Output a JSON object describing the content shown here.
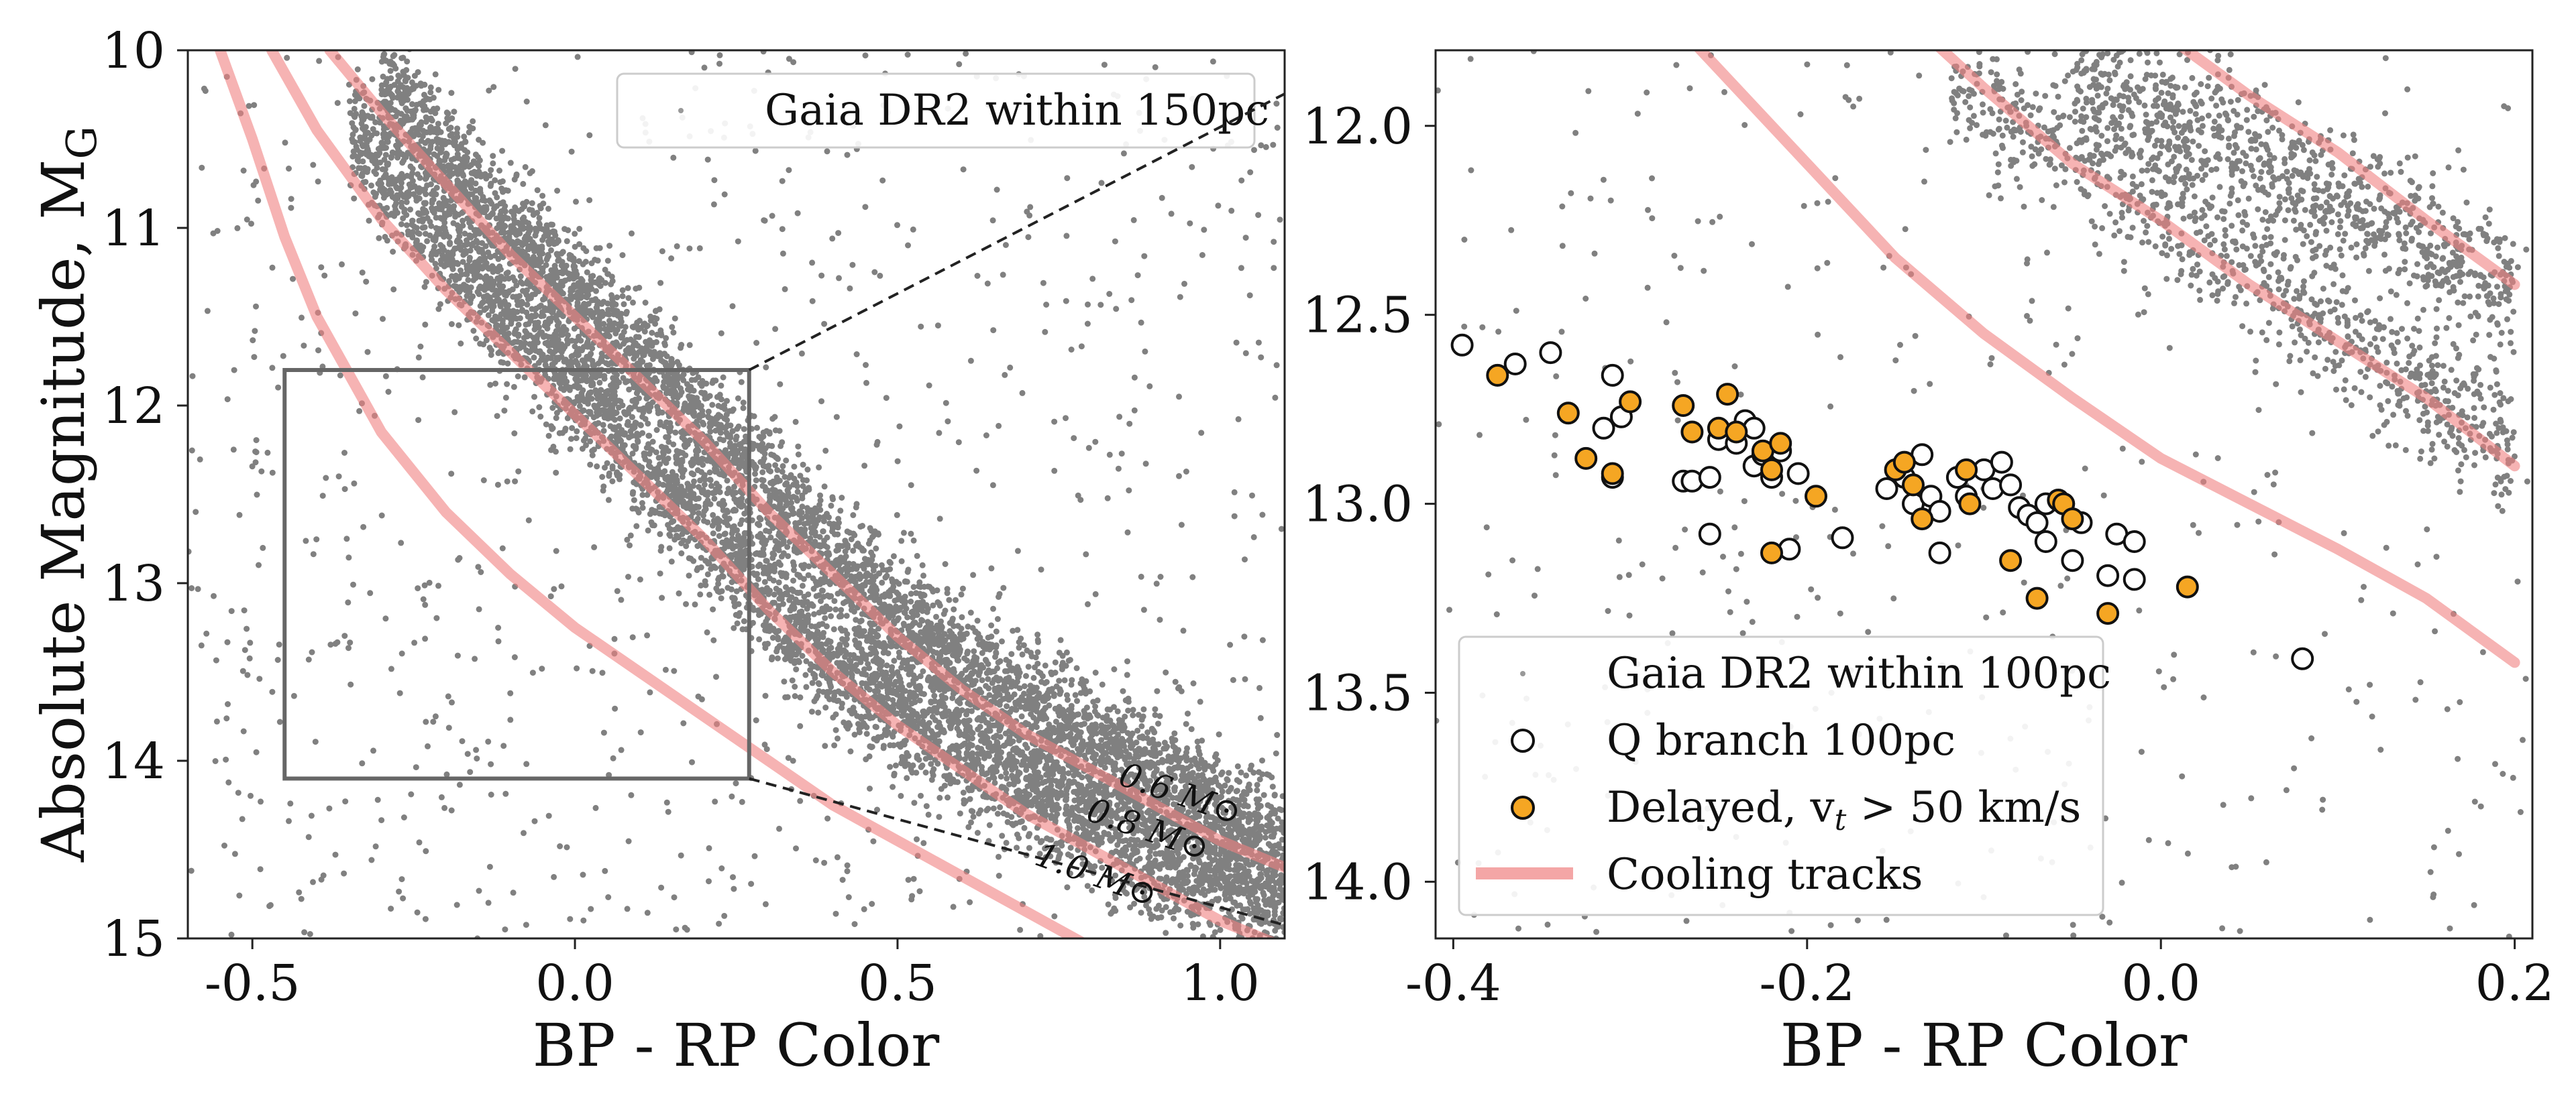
{
  "chart_data": [
    {
      "type": "scatter",
      "panel": "left",
      "xlabel": "BP - RP Color",
      "ylabel": "Absolute Magnitude, M",
      "ylabel_subscript": "G",
      "xlim": [
        -0.6,
        1.1
      ],
      "ylim": [
        15,
        10
      ],
      "y_inverted": true,
      "xticks": [
        "-0.5",
        "0.0",
        "0.5",
        "1.0"
      ],
      "xtick_values": [
        -0.5,
        0.0,
        0.5,
        1.0
      ],
      "yticks": [
        "10",
        "11",
        "12",
        "13",
        "14",
        "15"
      ],
      "ytick_values": [
        10,
        11,
        12,
        13,
        14,
        15
      ],
      "grid": false,
      "legend_position": "top-right",
      "legend": [
        {
          "label": "Gaia DR2 within 150pc",
          "marker": "small-gray-dot"
        }
      ],
      "series": [
        {
          "name": "Gaia DR2 within 150pc",
          "kind": "point-cloud",
          "color": "#808080",
          "ridges": [
            {
              "x": [
                -0.35,
                -0.2,
                0.0,
                0.2,
                0.4,
                0.6,
                0.8,
                1.1
              ],
              "y": [
                10.4,
                11.1,
                11.9,
                12.7,
                13.45,
                13.95,
                14.35,
                14.85
              ]
            },
            {
              "x": [
                -0.3,
                -0.15,
                0.05,
                0.25,
                0.45,
                0.65,
                0.85,
                1.1
              ],
              "y": [
                10.2,
                10.85,
                11.55,
                12.3,
                13.05,
                13.6,
                14.0,
                14.5
              ]
            }
          ],
          "spread_mag": 0.35,
          "scattered_background": true
        },
        {
          "name": "0.6 M⊙",
          "kind": "cooling-track",
          "color": "#f08080",
          "x": [
            -0.38,
            -0.3,
            -0.2,
            -0.1,
            0.0,
            0.1,
            0.2,
            0.3,
            0.4,
            0.5,
            0.6,
            0.7,
            0.8,
            0.9,
            1.0,
            1.1
          ],
          "y": [
            10.0,
            10.35,
            10.75,
            11.15,
            11.5,
            11.85,
            12.2,
            12.6,
            12.95,
            13.3,
            13.6,
            13.85,
            14.05,
            14.25,
            14.45,
            14.6
          ]
        },
        {
          "name": "0.8 M⊙",
          "kind": "cooling-track",
          "color": "#f08080",
          "x": [
            -0.47,
            -0.4,
            -0.3,
            -0.2,
            -0.1,
            0.0,
            0.1,
            0.2,
            0.3,
            0.4,
            0.5,
            0.6,
            0.7,
            0.8,
            0.9,
            1.0,
            1.1
          ],
          "y": [
            10.0,
            10.45,
            10.95,
            11.35,
            11.7,
            12.05,
            12.4,
            12.75,
            13.15,
            13.5,
            13.8,
            14.05,
            14.3,
            14.5,
            14.7,
            14.9,
            15.05
          ]
        },
        {
          "name": "1.0 M⊙",
          "kind": "cooling-track",
          "color": "#f08080",
          "x": [
            -0.55,
            -0.5,
            -0.45,
            -0.4,
            -0.3,
            -0.2,
            -0.1,
            0.0,
            0.1,
            0.2,
            0.3,
            0.4,
            0.5,
            0.6,
            0.7,
            0.8
          ],
          "y": [
            10.0,
            10.5,
            11.05,
            11.5,
            12.15,
            12.6,
            12.95,
            13.25,
            13.5,
            13.75,
            14.0,
            14.25,
            14.45,
            14.65,
            14.85,
            15.05
          ]
        }
      ],
      "track_labels": [
        "0.6 M⊙",
        "0.8 M⊙",
        "1.0 M⊙"
      ],
      "zoom_box": {
        "x": [
          -0.45,
          0.27
        ],
        "y": [
          11.8,
          14.1
        ]
      }
    },
    {
      "type": "scatter",
      "panel": "right",
      "xlabel": "BP - RP Color",
      "ylabel": "",
      "xlim": [
        -0.41,
        0.21
      ],
      "ylim": [
        14.15,
        11.8
      ],
      "y_inverted": true,
      "xticks": [
        "-0.4",
        "-0.2",
        "0.0",
        "0.2"
      ],
      "xtick_values": [
        -0.4,
        -0.2,
        0.0,
        0.2
      ],
      "yticks": [
        "12.0",
        "12.5",
        "13.0",
        "13.5",
        "14.0"
      ],
      "ytick_values": [
        12.0,
        12.5,
        13.0,
        13.5,
        14.0
      ],
      "grid": false,
      "legend_position": "lower-left",
      "legend": [
        {
          "label": "Gaia DR2 within 100pc",
          "marker": "small-gray-dot"
        },
        {
          "label": "Q branch 100pc",
          "marker": "open-circle"
        },
        {
          "label": "Delayed, v",
          "label_subscript": "t",
          "label_suffix": " > 50 km/s",
          "marker": "orange-circle"
        },
        {
          "label": "Cooling tracks",
          "marker": "pink-line"
        }
      ],
      "series": [
        {
          "name": "Gaia DR2 within 100pc",
          "kind": "point-cloud",
          "color": "#808080",
          "ridges": [
            {
              "x": [
                -0.05,
                0.0,
                0.05,
                0.1,
                0.15,
                0.2
              ],
              "y": [
                11.85,
                11.95,
                12.05,
                12.2,
                12.3,
                12.45
              ]
            },
            {
              "x": [
                -0.12,
                -0.05,
                0.0,
                0.05,
                0.1,
                0.15,
                0.2
              ],
              "y": [
                11.9,
                12.05,
                12.2,
                12.35,
                12.55,
                12.7,
                12.85
              ]
            }
          ],
          "spread_mag": 0.18,
          "scattered_background": true
        },
        {
          "name": "Q branch 100pc",
          "kind": "markers",
          "marker": "open-circle",
          "points": [
            [
              -0.395,
              12.58
            ],
            [
              -0.365,
              12.63
            ],
            [
              -0.345,
              12.6
            ],
            [
              -0.31,
              12.66
            ],
            [
              -0.315,
              12.8
            ],
            [
              -0.305,
              12.77
            ],
            [
              -0.31,
              12.93
            ],
            [
              -0.27,
              12.94
            ],
            [
              -0.265,
              12.94
            ],
            [
              -0.255,
              12.93
            ],
            [
              -0.25,
              12.83
            ],
            [
              -0.24,
              12.84
            ],
            [
              -0.235,
              12.78
            ],
            [
              -0.23,
              12.8
            ],
            [
              -0.23,
              12.9
            ],
            [
              -0.225,
              12.87
            ],
            [
              -0.22,
              12.93
            ],
            [
              -0.215,
              12.86
            ],
            [
              -0.205,
              12.92
            ],
            [
              -0.255,
              13.08
            ],
            [
              -0.21,
              13.12
            ],
            [
              -0.18,
              13.09
            ],
            [
              -0.155,
              12.96
            ],
            [
              -0.145,
              12.93
            ],
            [
              -0.135,
              12.87
            ],
            [
              -0.14,
              13.0
            ],
            [
              -0.13,
              12.98
            ],
            [
              -0.125,
              13.02
            ],
            [
              -0.125,
              13.13
            ],
            [
              -0.115,
              12.93
            ],
            [
              -0.11,
              12.98
            ],
            [
              -0.1,
              12.91
            ],
            [
              -0.095,
              12.96
            ],
            [
              -0.09,
              12.89
            ],
            [
              -0.085,
              12.95
            ],
            [
              -0.08,
              13.01
            ],
            [
              -0.075,
              13.03
            ],
            [
              -0.07,
              13.05
            ],
            [
              -0.065,
              13.0
            ],
            [
              -0.065,
              13.1
            ],
            [
              -0.055,
              13.0
            ],
            [
              -0.05,
              13.15
            ],
            [
              -0.045,
              13.05
            ],
            [
              -0.03,
              13.19
            ],
            [
              -0.025,
              13.08
            ],
            [
              -0.015,
              13.2
            ],
            [
              -0.015,
              13.1
            ],
            [
              0.08,
              13.41
            ]
          ]
        },
        {
          "name": "Delayed, vt > 50 km/s",
          "kind": "markers",
          "marker": "orange-circle",
          "color": "#f5a623",
          "points": [
            [
              -0.375,
              12.66
            ],
            [
              -0.335,
              12.76
            ],
            [
              -0.325,
              12.88
            ],
            [
              -0.31,
              12.92
            ],
            [
              -0.3,
              12.73
            ],
            [
              -0.27,
              12.74
            ],
            [
              -0.265,
              12.81
            ],
            [
              -0.25,
              12.8
            ],
            [
              -0.245,
              12.71
            ],
            [
              -0.24,
              12.81
            ],
            [
              -0.225,
              12.86
            ],
            [
              -0.22,
              12.91
            ],
            [
              -0.215,
              12.84
            ],
            [
              -0.22,
              13.13
            ],
            [
              -0.195,
              12.98
            ],
            [
              -0.15,
              12.91
            ],
            [
              -0.145,
              12.89
            ],
            [
              -0.14,
              12.95
            ],
            [
              -0.135,
              13.04
            ],
            [
              -0.11,
              12.91
            ],
            [
              -0.108,
              13.0
            ],
            [
              -0.085,
              13.15
            ],
            [
              -0.07,
              13.25
            ],
            [
              -0.058,
              12.99
            ],
            [
              -0.055,
              13.0
            ],
            [
              -0.05,
              13.04
            ],
            [
              -0.03,
              13.29
            ],
            [
              0.015,
              13.22
            ]
          ]
        },
        {
          "name": "Cooling tracks",
          "kind": "cooling-track",
          "color": "#f08080",
          "tracks": [
            {
              "x": [
                0.0,
                0.05,
                0.1,
                0.15,
                0.2
              ],
              "y": [
                11.75,
                11.92,
                12.07,
                12.25,
                12.42
              ]
            },
            {
              "x": [
                -0.135,
                -0.1,
                -0.05,
                0.0,
                0.05,
                0.1,
                0.15,
                0.2
              ],
              "y": [
                11.75,
                11.9,
                12.1,
                12.25,
                12.42,
                12.57,
                12.72,
                12.9
              ]
            },
            {
              "x": [
                -0.27,
                -0.2,
                -0.15,
                -0.1,
                -0.05,
                0.0,
                0.05,
                0.1,
                0.15,
                0.2
              ],
              "y": [
                11.75,
                12.1,
                12.35,
                12.55,
                12.72,
                12.88,
                13.0,
                13.12,
                13.25,
                13.42
              ]
            }
          ]
        }
      ]
    }
  ]
}
